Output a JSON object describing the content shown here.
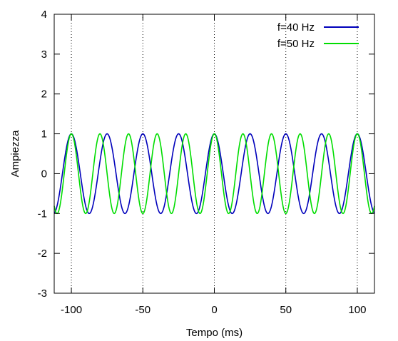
{
  "chart_data": {
    "type": "line",
    "xlabel": "Tempo (ms)",
    "ylabel": "Ampiezza",
    "xlim": [
      -112,
      112
    ],
    "ylim": [
      -3,
      4
    ],
    "x_ticks": [
      -100,
      -50,
      0,
      50,
      100
    ],
    "y_ticks": [
      -3,
      -2,
      -1,
      0,
      1,
      2,
      3,
      4
    ],
    "x_tick_labels": [
      "-100",
      "-50",
      "0",
      "50",
      "100"
    ],
    "y_tick_labels": [
      "-3",
      "-2",
      "-1",
      "0",
      "1",
      "2",
      "3",
      "4"
    ],
    "grid": "vertical dotted lines at x ticks",
    "legend_position": "top-right",
    "series": [
      {
        "name": "f=40 Hz",
        "function": "cosine",
        "frequency_hz": 40,
        "amplitude": 1,
        "color": "#0000bb"
      },
      {
        "name": "f=50 Hz",
        "function": "cosine",
        "frequency_hz": 50,
        "amplitude": 1,
        "color": "#00dd00"
      }
    ]
  }
}
